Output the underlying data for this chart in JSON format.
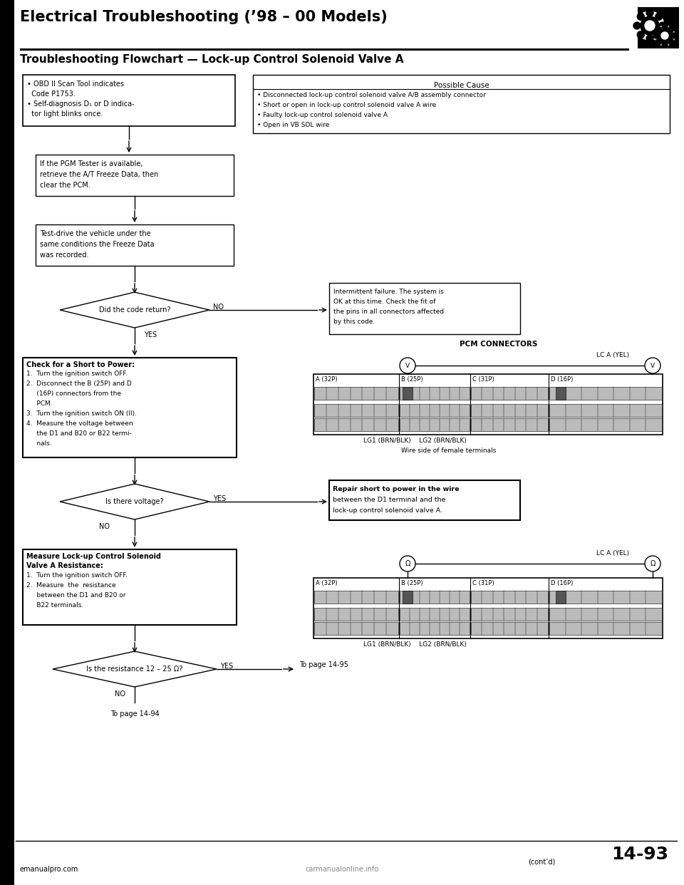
{
  "title": "Electrical Troubleshooting (’98 – 00 Models)",
  "subtitle": "Troubleshooting Flowchart — Lock-up Control Solenoid Valve A",
  "bg_color": "#ffffff",
  "page_num": "14-93",
  "footer_left": "emanualpro.com",
  "footer_right": "(cont’d)",
  "possible_cause_title": "Possible Cause",
  "possible_cause_items": [
    "• Disconnected lock-up control solenoid valve A/B assembly connector",
    "• Short or open in lock-up control solenoid valve A wire",
    "• Faulty lock-up control solenoid valve A",
    "• Open in VB SOL wire"
  ],
  "box1_lines": [
    "• OBD II Scan Tool indicates",
    "  Code P1753.",
    "• Self-diagnosis D₁ or D indica-",
    "  tor light blinks once."
  ],
  "box2_lines": [
    "If the PGM Tester is available,",
    "retrieve the A/T Freeze Data, then",
    "clear the PCM."
  ],
  "box3_lines": [
    "Test-drive the vehicle under the",
    "same conditions the Freeze Data",
    "was recorded."
  ],
  "diamond1_text": "Did the code return?",
  "intermittent_lines": [
    "Intermittent failure. The system is",
    "OK at this time. Check the fit of",
    "the pins in all connectors affected",
    "by this code."
  ],
  "pcm_connectors_label": "PCM CONNECTORS",
  "lca_yel_label": "LC A (YEL)",
  "wire_side_label": "Wire side of female terminals",
  "lg_label": "LG1 (BRN/BLK)    LG2 (BRN/BLK)",
  "connector_labels": [
    "A (32P)",
    "B (25P)",
    "C (31P)",
    "D (16P)"
  ],
  "box4_bold": "Check for a Short to Power:",
  "box4_lines": [
    "1.  Turn the ignition switch OFF.",
    "2.  Disconnect the B (25P) and D",
    "     (16P) connectors from the",
    "     PCM.",
    "3.  Turn the ignition switch ON (II).",
    "4.  Measure the voltage between",
    "     the D1 and B20 or B22 termi-",
    "     nals."
  ],
  "diamond2_text": "Is there voltage?",
  "repair_lines": [
    "Repair short to power in the wire",
    "between the D1 terminal and the",
    "lock-up control solenoid valve A."
  ],
  "box5_bold_lines": [
    "Measure Lock-up Control Solenoid",
    "Valve A Resistance:"
  ],
  "box5_lines": [
    "1.  Turn the ignition switch OFF.",
    "2.  Measure  the  resistance",
    "     between the D1 and B20 or",
    "     B22 terminals."
  ],
  "diamond3_text": "Is the resistance 12 – 25 Ω?",
  "to_page_95": "To page 14-95",
  "to_page_94": "To page 14-94"
}
